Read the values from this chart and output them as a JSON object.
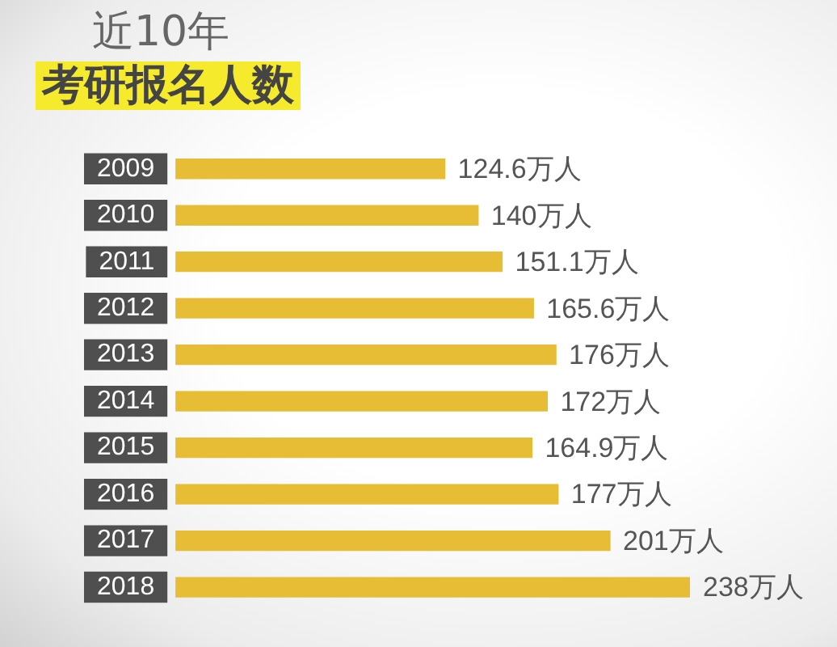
{
  "chart_data": {
    "type": "bar",
    "orientation": "horizontal",
    "title": "近10年",
    "subtitle": "考研报名人数",
    "categories": [
      "2009",
      "2010",
      "2011",
      "2012",
      "2013",
      "2014",
      "2015",
      "2016",
      "2017",
      "2018"
    ],
    "values": [
      124.6,
      140,
      151.1,
      165.6,
      176,
      172,
      164.9,
      177,
      201,
      238
    ],
    "value_labels": [
      "124.6万人",
      "140万人",
      "151.1万人",
      "165.6万人",
      "176万人",
      "172万人",
      "164.9万人",
      "177万人",
      "201万人",
      "238万人"
    ],
    "color": "#e6bd35",
    "tick_labels": "y"
  }
}
